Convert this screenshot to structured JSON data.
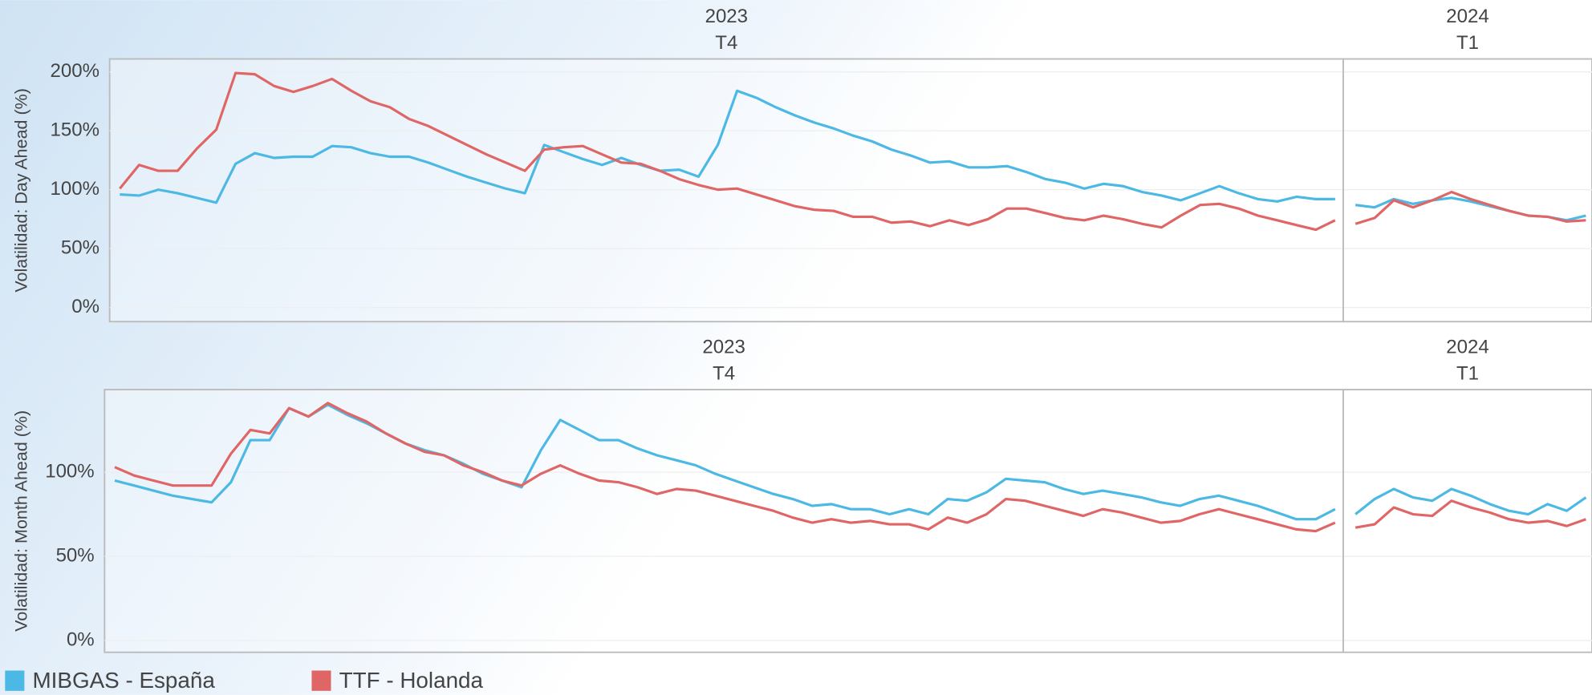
{
  "chart_data": [
    {
      "type": "line",
      "y_label": "Volatilidad: Day Ahead (%)",
      "ylim": [
        -12,
        211
      ],
      "grid": true,
      "yticks": [
        {
          "value": 0,
          "label": "0%"
        },
        {
          "value": 50,
          "label": "50%"
        },
        {
          "value": 100,
          "label": "100%"
        },
        {
          "value": 150,
          "label": "150%"
        },
        {
          "value": 200,
          "label": "200%"
        }
      ],
      "panels": [
        {
          "year": "2023",
          "quarter": "T4",
          "series": [
            {
              "values": [
                96,
                95,
                100,
                97,
                93,
                89,
                122,
                131,
                127,
                128,
                128,
                137,
                136,
                131,
                128,
                128,
                123,
                117,
                111,
                106,
                101,
                97,
                138,
                132,
                126,
                121,
                127,
                121,
                116,
                117,
                111,
                138,
                184,
                178,
                170,
                163,
                157,
                152,
                146,
                141,
                134,
                129,
                123,
                124,
                119,
                119,
                120,
                115,
                109,
                106,
                101,
                105,
                103,
                98,
                95,
                91,
                97,
                103,
                97,
                92,
                90,
                94,
                92,
                92
              ]
            },
            {
              "values": [
                101,
                121,
                116,
                116,
                135,
                151,
                199,
                198,
                188,
                183,
                188,
                194,
                184,
                175,
                170,
                160,
                154,
                146,
                138,
                130,
                123,
                116,
                134,
                136,
                137,
                130,
                123,
                122,
                116,
                109,
                104,
                100,
                101,
                96,
                91,
                86,
                83,
                82,
                77,
                77,
                72,
                73,
                69,
                74,
                70,
                75,
                84,
                84,
                80,
                76,
                74,
                78,
                75,
                71,
                68,
                78,
                87,
                88,
                84,
                78,
                74,
                70,
                66,
                74
              ]
            }
          ]
        },
        {
          "year": "2024",
          "quarter": "T1",
          "series": [
            {
              "values": [
                87,
                85,
                92,
                88,
                91,
                93,
                90,
                86,
                82,
                78,
                77,
                74,
                78
              ]
            },
            {
              "values": [
                71,
                76,
                91,
                85,
                91,
                98,
                92,
                87,
                82,
                78,
                77,
                73,
                74
              ]
            }
          ]
        }
      ]
    },
    {
      "type": "line",
      "y_label": "Volatilidad: Month Ahead (%)",
      "ylim": [
        -7,
        149
      ],
      "grid": true,
      "yticks": [
        {
          "value": 0,
          "label": "0%"
        },
        {
          "value": 50,
          "label": "50%"
        },
        {
          "value": 100,
          "label": "100%"
        }
      ],
      "panels": [
        {
          "year": "2023",
          "quarter": "T4",
          "series": [
            {
              "values": [
                95,
                92,
                89,
                86,
                84,
                82,
                94,
                119,
                119,
                138,
                133,
                140,
                134,
                129,
                123,
                117,
                113,
                110,
                105,
                99,
                95,
                91,
                113,
                131,
                125,
                119,
                119,
                114,
                110,
                107,
                104,
                99,
                95,
                91,
                87,
                84,
                80,
                81,
                78,
                78,
                75,
                78,
                75,
                84,
                83,
                88,
                96,
                95,
                94,
                90,
                87,
                89,
                87,
                85,
                82,
                80,
                84,
                86,
                83,
                80,
                76,
                72,
                72,
                78
              ]
            },
            {
              "values": [
                103,
                98,
                95,
                92,
                92,
                92,
                111,
                125,
                123,
                138,
                133,
                141,
                135,
                130,
                123,
                117,
                112,
                110,
                104,
                100,
                95,
                92,
                99,
                104,
                99,
                95,
                94,
                91,
                87,
                90,
                89,
                86,
                83,
                80,
                77,
                73,
                70,
                72,
                70,
                71,
                69,
                69,
                66,
                73,
                70,
                75,
                84,
                83,
                80,
                77,
                74,
                78,
                76,
                73,
                70,
                71,
                75,
                78,
                75,
                72,
                69,
                66,
                65,
                70
              ]
            }
          ]
        },
        {
          "year": "2024",
          "quarter": "T1",
          "series": [
            {
              "values": [
                75,
                84,
                90,
                85,
                83,
                90,
                86,
                81,
                77,
                75,
                81,
                77,
                85
              ]
            },
            {
              "values": [
                67,
                69,
                79,
                75,
                74,
                83,
                79,
                76,
                72,
                70,
                71,
                68,
                72
              ]
            }
          ]
        }
      ]
    }
  ],
  "legend": [
    {
      "name": "MIBGAS - España",
      "color": "#4cb8e4"
    },
    {
      "name": "TTF - Holanda",
      "color": "#e06666"
    }
  ]
}
